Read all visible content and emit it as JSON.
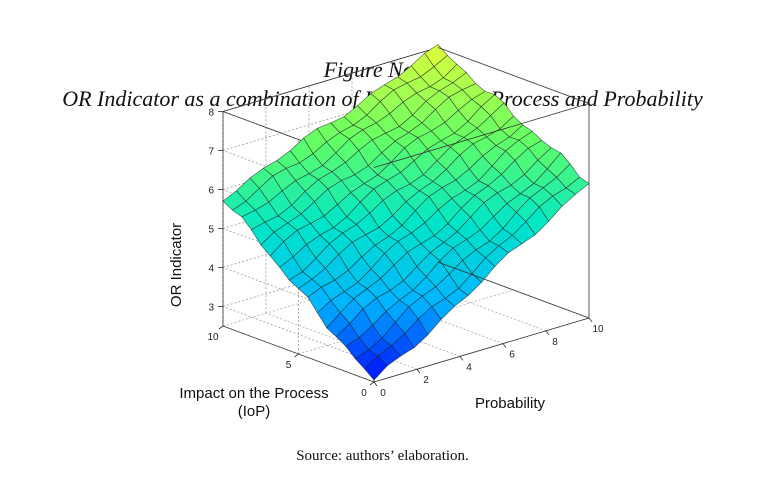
{
  "figure": {
    "number": "Figure No.19",
    "title": "OR Indicator as a combination of Impact on the Process and Probability",
    "source": "Source: authors’ elaboration."
  },
  "chart_data": {
    "type": "surface",
    "title": "OR Indicator as a combination of Impact on the Process and Probability",
    "xlabel": "Probability",
    "ylabel_lines": [
      "Impact on the Process",
      "(IoP)"
    ],
    "zlabel": "OR Indicator",
    "xlim": [
      0,
      10
    ],
    "ylim": [
      0,
      10
    ],
    "zlim": [
      2.5,
      8
    ],
    "x_ticks": [
      "0",
      "2",
      "4",
      "6",
      "8",
      "10"
    ],
    "y_ticks": [
      "0",
      "5",
      "10"
    ],
    "z_ticks": [
      "3",
      "4",
      "5",
      "6",
      "7",
      "8"
    ],
    "grid": true,
    "colormap": [
      "#0000ff",
      "#00b4ff",
      "#00e6c8",
      "#64ff64",
      "#dcff3c"
    ],
    "corner_values": [
      {
        "probability": 0,
        "iop": 0,
        "or": 2.5
      },
      {
        "probability": 10,
        "iop": 0,
        "or": 6.0
      },
      {
        "probability": 0,
        "iop": 10,
        "or": 5.8
      },
      {
        "probability": 10,
        "iop": 10,
        "or": 8.0
      }
    ]
  }
}
